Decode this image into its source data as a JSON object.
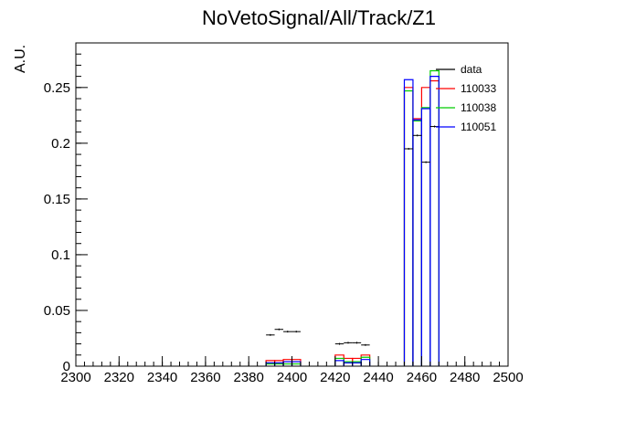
{
  "chart_data": {
    "type": "histogram",
    "title": "NoVetoSignal/All/Track/Z1",
    "xlabel": "",
    "ylabel": "A.U.",
    "xlim": [
      2300,
      2500
    ],
    "ylim": [
      0,
      0.29
    ],
    "x_ticks": [
      2300,
      2320,
      2340,
      2360,
      2380,
      2400,
      2420,
      2440,
      2460,
      2480,
      2500
    ],
    "x_tick_labels": [
      "2300",
      "2320",
      "2340",
      "2360",
      "2380",
      "2400",
      "2420",
      "2440",
      "2460",
      "2480",
      "2500"
    ],
    "y_ticks": [
      0,
      0.05,
      0.1,
      0.15,
      0.2,
      0.25
    ],
    "y_tick_labels": [
      "0",
      "0.05",
      "0.1",
      "0.15",
      "0.2",
      "0.25"
    ],
    "bin_width": 4,
    "grid": false,
    "legend_position": "top-right",
    "colors": {
      "data": "#000000",
      "110033": "#ff0000",
      "110038": "#00cc00",
      "110051": "#0000ff"
    },
    "data_points": [
      {
        "x": 2390,
        "y": 0.028
      },
      {
        "x": 2394,
        "y": 0.033
      },
      {
        "x": 2398,
        "y": 0.031
      },
      {
        "x": 2402,
        "y": 0.031
      },
      {
        "x": 2422,
        "y": 0.02
      },
      {
        "x": 2426,
        "y": 0.021
      },
      {
        "x": 2430,
        "y": 0.021
      },
      {
        "x": 2434,
        "y": 0.019
      },
      {
        "x": 2454,
        "y": 0.195
      },
      {
        "x": 2458,
        "y": 0.207
      },
      {
        "x": 2462,
        "y": 0.183
      },
      {
        "x": 2466,
        "y": 0.215
      }
    ],
    "series": [
      {
        "name": "110033",
        "color": "#ff0000",
        "bins": [
          {
            "lo": 2388,
            "hi": 2392,
            "y": 0.005
          },
          {
            "lo": 2392,
            "hi": 2396,
            "y": 0.005
          },
          {
            "lo": 2396,
            "hi": 2400,
            "y": 0.006
          },
          {
            "lo": 2400,
            "hi": 2404,
            "y": 0.006
          },
          {
            "lo": 2420,
            "hi": 2424,
            "y": 0.01
          },
          {
            "lo": 2424,
            "hi": 2428,
            "y": 0.007
          },
          {
            "lo": 2428,
            "hi": 2432,
            "y": 0.007
          },
          {
            "lo": 2432,
            "hi": 2436,
            "y": 0.01
          },
          {
            "lo": 2452,
            "hi": 2456,
            "y": 0.25
          },
          {
            "lo": 2456,
            "hi": 2460,
            "y": 0.222
          },
          {
            "lo": 2460,
            "hi": 2464,
            "y": 0.25
          },
          {
            "lo": 2464,
            "hi": 2468,
            "y": 0.256
          }
        ]
      },
      {
        "name": "110038",
        "color": "#00cc00",
        "bins": [
          {
            "lo": 2388,
            "hi": 2392,
            "y": 0.002
          },
          {
            "lo": 2392,
            "hi": 2396,
            "y": 0.002
          },
          {
            "lo": 2396,
            "hi": 2400,
            "y": 0.002
          },
          {
            "lo": 2400,
            "hi": 2404,
            "y": 0.002
          },
          {
            "lo": 2420,
            "hi": 2424,
            "y": 0.007
          },
          {
            "lo": 2424,
            "hi": 2428,
            "y": 0.004
          },
          {
            "lo": 2428,
            "hi": 2432,
            "y": 0.004
          },
          {
            "lo": 2432,
            "hi": 2436,
            "y": 0.008
          },
          {
            "lo": 2452,
            "hi": 2456,
            "y": 0.247
          },
          {
            "lo": 2456,
            "hi": 2460,
            "y": 0.22
          },
          {
            "lo": 2460,
            "hi": 2464,
            "y": 0.232
          },
          {
            "lo": 2464,
            "hi": 2468,
            "y": 0.265
          }
        ]
      },
      {
        "name": "110051",
        "color": "#0000ff",
        "bins": [
          {
            "lo": 2388,
            "hi": 2392,
            "y": 0.003
          },
          {
            "lo": 2392,
            "hi": 2396,
            "y": 0.003
          },
          {
            "lo": 2396,
            "hi": 2400,
            "y": 0.004
          },
          {
            "lo": 2400,
            "hi": 2404,
            "y": 0.004
          },
          {
            "lo": 2420,
            "hi": 2424,
            "y": 0.005
          },
          {
            "lo": 2424,
            "hi": 2428,
            "y": 0.003
          },
          {
            "lo": 2428,
            "hi": 2432,
            "y": 0.003
          },
          {
            "lo": 2432,
            "hi": 2436,
            "y": 0.006
          },
          {
            "lo": 2452,
            "hi": 2456,
            "y": 0.257
          },
          {
            "lo": 2456,
            "hi": 2460,
            "y": 0.221
          },
          {
            "lo": 2460,
            "hi": 2464,
            "y": 0.231
          },
          {
            "lo": 2464,
            "hi": 2468,
            "y": 0.26
          }
        ]
      }
    ],
    "legend": [
      {
        "label": "data",
        "color": "#000000"
      },
      {
        "label": "110033",
        "color": "#ff0000"
      },
      {
        "label": "110038",
        "color": "#00cc00"
      },
      {
        "label": "110051",
        "color": "#0000ff"
      }
    ]
  }
}
